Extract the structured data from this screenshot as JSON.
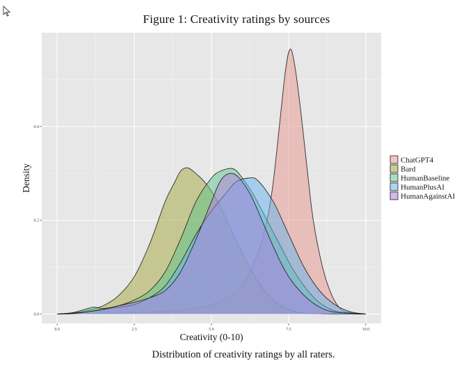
{
  "figure": {
    "title": "Figure 1: Creativity ratings by sources",
    "caption": "Distribution of creativity ratings by all raters."
  },
  "chart_data": {
    "type": "area",
    "subtype": "density",
    "xlabel": "Creativity (0-10)",
    "ylabel": "Density",
    "xlim": [
      -0.5,
      10.5
    ],
    "ylim": [
      -0.02,
      0.6
    ],
    "x_ticks": [
      0.0,
      2.5,
      5.0,
      7.5,
      10.0
    ],
    "x_tick_labels": [
      "0.0",
      "2.5",
      "5.0",
      "7.5",
      "10.0"
    ],
    "y_ticks": [
      0.0,
      0.2,
      0.4
    ],
    "y_tick_labels": [
      "0.0",
      "0.2",
      "0.4"
    ],
    "grid": true,
    "legend_position": "right",
    "series": [
      {
        "name": "ChatGPT4",
        "color": "#e8958b",
        "points": [
          [
            0,
            0
          ],
          [
            1,
            0.001
          ],
          [
            2,
            0.002
          ],
          [
            3,
            0.004
          ],
          [
            4,
            0.008
          ],
          [
            4.5,
            0.012
          ],
          [
            5,
            0.02
          ],
          [
            5.5,
            0.035
          ],
          [
            6,
            0.06
          ],
          [
            6.5,
            0.13
          ],
          [
            6.8,
            0.2
          ],
          [
            7,
            0.28
          ],
          [
            7.2,
            0.4
          ],
          [
            7.4,
            0.52
          ],
          [
            7.55,
            0.565
          ],
          [
            7.7,
            0.53
          ],
          [
            7.9,
            0.43
          ],
          [
            8.1,
            0.31
          ],
          [
            8.3,
            0.2
          ],
          [
            8.6,
            0.1
          ],
          [
            8.9,
            0.04
          ],
          [
            9.2,
            0.01
          ],
          [
            9.5,
            0.003
          ],
          [
            10,
            0
          ]
        ]
      },
      {
        "name": "Bard",
        "color": "#a3a53c",
        "points": [
          [
            0,
            0
          ],
          [
            0.5,
            0.002
          ],
          [
            1,
            0.008
          ],
          [
            1.5,
            0.018
          ],
          [
            2,
            0.04
          ],
          [
            2.5,
            0.08
          ],
          [
            3,
            0.15
          ],
          [
            3.5,
            0.24
          ],
          [
            3.8,
            0.28
          ],
          [
            4,
            0.305
          ],
          [
            4.2,
            0.312
          ],
          [
            4.4,
            0.305
          ],
          [
            4.8,
            0.28
          ],
          [
            5.2,
            0.24
          ],
          [
            5.6,
            0.185
          ],
          [
            6,
            0.13
          ],
          [
            6.5,
            0.07
          ],
          [
            7,
            0.03
          ],
          [
            7.5,
            0.01
          ],
          [
            8,
            0.002
          ],
          [
            9,
            0
          ],
          [
            10,
            0
          ]
        ]
      },
      {
        "name": "HumanBaseline",
        "color": "#5fc48a",
        "points": [
          [
            0,
            0
          ],
          [
            0.5,
            0.003
          ],
          [
            1,
            0.012
          ],
          [
            1.2,
            0.015
          ],
          [
            1.5,
            0.012
          ],
          [
            2,
            0.018
          ],
          [
            2.5,
            0.03
          ],
          [
            3,
            0.05
          ],
          [
            3.5,
            0.09
          ],
          [
            4,
            0.16
          ],
          [
            4.5,
            0.24
          ],
          [
            5,
            0.29
          ],
          [
            5.3,
            0.305
          ],
          [
            5.7,
            0.31
          ],
          [
            6,
            0.29
          ],
          [
            6.4,
            0.25
          ],
          [
            6.8,
            0.2
          ],
          [
            7.2,
            0.15
          ],
          [
            7.6,
            0.1
          ],
          [
            8,
            0.06
          ],
          [
            8.4,
            0.03
          ],
          [
            8.8,
            0.012
          ],
          [
            9.2,
            0.004
          ],
          [
            10,
            0
          ]
        ]
      },
      {
        "name": "HumanPlusAI",
        "color": "#63b4ef",
        "points": [
          [
            0,
            0
          ],
          [
            0.5,
            0.002
          ],
          [
            1,
            0.005
          ],
          [
            1.5,
            0.01
          ],
          [
            2,
            0.015
          ],
          [
            2.5,
            0.02
          ],
          [
            3,
            0.035
          ],
          [
            3.5,
            0.06
          ],
          [
            4,
            0.11
          ],
          [
            4.5,
            0.17
          ],
          [
            5,
            0.22
          ],
          [
            5.5,
            0.26
          ],
          [
            5.8,
            0.282
          ],
          [
            6.2,
            0.29
          ],
          [
            6.5,
            0.285
          ],
          [
            7,
            0.24
          ],
          [
            7.5,
            0.17
          ],
          [
            8,
            0.1
          ],
          [
            8.5,
            0.05
          ],
          [
            9,
            0.02
          ],
          [
            9.5,
            0.005
          ],
          [
            10,
            0
          ]
        ]
      },
      {
        "name": "HumanAgainstAI",
        "color": "#b07fe2",
        "points": [
          [
            0,
            0
          ],
          [
            0.5,
            0.001
          ],
          [
            1,
            0.005
          ],
          [
            1.5,
            0.01
          ],
          [
            2,
            0.018
          ],
          [
            2.5,
            0.025
          ],
          [
            3,
            0.035
          ],
          [
            3.5,
            0.05
          ],
          [
            4,
            0.09
          ],
          [
            4.5,
            0.16
          ],
          [
            5,
            0.24
          ],
          [
            5.3,
            0.285
          ],
          [
            5.6,
            0.3
          ],
          [
            5.9,
            0.29
          ],
          [
            6.3,
            0.25
          ],
          [
            6.7,
            0.19
          ],
          [
            7.1,
            0.13
          ],
          [
            7.5,
            0.08
          ],
          [
            8,
            0.04
          ],
          [
            8.5,
            0.015
          ],
          [
            9,
            0.004
          ],
          [
            10,
            0
          ]
        ]
      }
    ]
  }
}
